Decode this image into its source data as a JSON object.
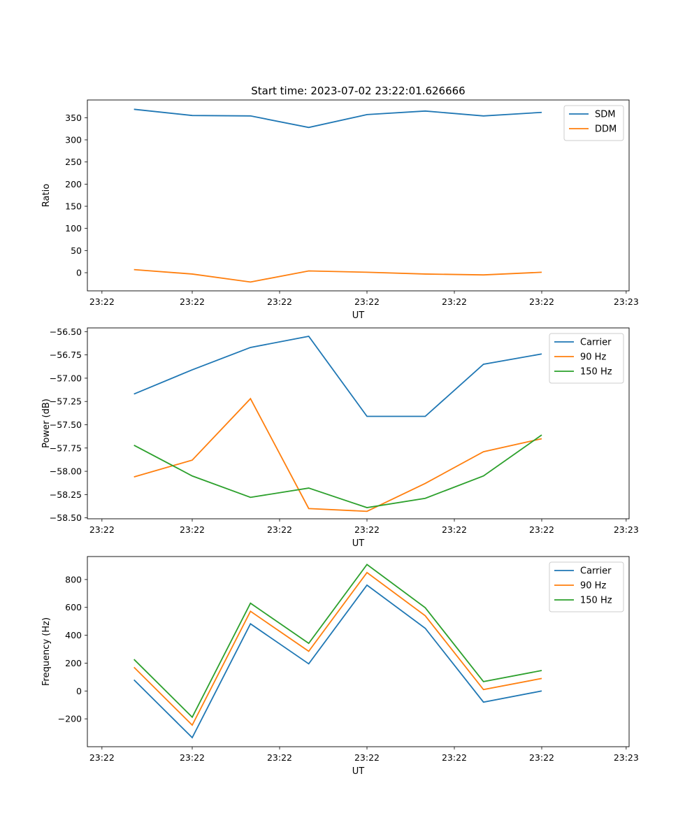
{
  "figure": {
    "title": "Start time: 2023-07-02 23:22:01.626666"
  },
  "colors": {
    "blue": "#1f77b4",
    "orange": "#ff7f0e",
    "green": "#2ca02c"
  },
  "chart_data": [
    {
      "type": "line",
      "title": "Start time: 2023-07-02 23:22:01.626666",
      "xlabel": "UT",
      "ylabel": "Ratio",
      "x": [
        1,
        2,
        3,
        4,
        5,
        6,
        7,
        8
      ],
      "xlim": [
        0.2,
        9.5
      ],
      "x_ticks": [
        0.45,
        2,
        3.5,
        5,
        6.5,
        8,
        9.45
      ],
      "x_tick_labels": [
        "23:22",
        "23:22",
        "23:22",
        "23:22",
        "23:22",
        "23:22",
        "23:23"
      ],
      "ylim": [
        -41,
        390
      ],
      "y_ticks": [
        0,
        50,
        100,
        150,
        200,
        250,
        300,
        350
      ],
      "y_tick_labels": [
        "0",
        "50",
        "100",
        "150",
        "200",
        "250",
        "300",
        "350"
      ],
      "legend_position": "top-right",
      "series": [
        {
          "name": "SDM",
          "color": "blue",
          "values": [
            369,
            355,
            354,
            328,
            357,
            365,
            354,
            362
          ]
        },
        {
          "name": "DDM",
          "color": "orange",
          "values": [
            7,
            -3,
            -21,
            4,
            1,
            -3,
            -5,
            1
          ]
        }
      ]
    },
    {
      "type": "line",
      "title": "",
      "xlabel": "UT",
      "ylabel": "Power (dB)",
      "x": [
        1,
        2,
        3,
        4,
        5,
        6,
        7,
        8
      ],
      "xlim": [
        0.2,
        9.5
      ],
      "x_ticks": [
        0.45,
        2,
        3.5,
        5,
        6.5,
        8,
        9.45
      ],
      "x_tick_labels": [
        "23:22",
        "23:22",
        "23:22",
        "23:22",
        "23:22",
        "23:22",
        "23:23"
      ],
      "ylim": [
        -58.51,
        -56.46
      ],
      "y_ticks": [
        -58.5,
        -58.25,
        -58.0,
        -57.75,
        -57.5,
        -57.25,
        -57.0,
        -56.75,
        -56.5
      ],
      "y_tick_labels": [
        "−58.50",
        "−58.25",
        "−58.00",
        "−57.75",
        "−57.50",
        "−57.25",
        "−57.00",
        "−56.75",
        "−56.50"
      ],
      "legend_position": "top-right",
      "series": [
        {
          "name": "Carrier",
          "color": "blue",
          "values": [
            -57.17,
            -56.91,
            -56.67,
            -56.55,
            -57.41,
            -57.41,
            -56.85,
            -56.74
          ]
        },
        {
          "name": "90 Hz",
          "color": "orange",
          "values": [
            -58.06,
            -57.88,
            -57.22,
            -58.4,
            -58.43,
            -58.13,
            -57.79,
            -57.65
          ]
        },
        {
          "name": "150 Hz",
          "color": "green",
          "values": [
            -57.72,
            -58.05,
            -58.28,
            -58.18,
            -58.39,
            -58.29,
            -58.05,
            -57.61
          ]
        }
      ]
    },
    {
      "type": "line",
      "title": "",
      "xlabel": "UT",
      "ylabel": "Frequency (Hz)",
      "x": [
        1,
        2,
        3,
        4,
        5,
        6,
        7,
        8
      ],
      "xlim": [
        0.2,
        9.5
      ],
      "x_ticks": [
        0.45,
        2,
        3.5,
        5,
        6.5,
        8,
        9.45
      ],
      "x_tick_labels": [
        "23:22",
        "23:22",
        "23:22",
        "23:22",
        "23:22",
        "23:22",
        "23:23"
      ],
      "ylim": [
        -400,
        965
      ],
      "y_ticks": [
        -200,
        0,
        200,
        400,
        600,
        800
      ],
      "y_tick_labels": [
        "−200",
        "0",
        "200",
        "400",
        "600",
        "800"
      ],
      "legend_position": "top-right",
      "series": [
        {
          "name": "Carrier",
          "color": "blue",
          "values": [
            80,
            -335,
            482,
            195,
            760,
            450,
            -80,
            0
          ]
        },
        {
          "name": "90 Hz",
          "color": "orange",
          "values": [
            170,
            -245,
            572,
            285,
            850,
            540,
            10,
            90
          ]
        },
        {
          "name": "150 Hz",
          "color": "green",
          "values": [
            227,
            -188,
            630,
            342,
            908,
            598,
            67,
            147
          ]
        }
      ]
    }
  ]
}
